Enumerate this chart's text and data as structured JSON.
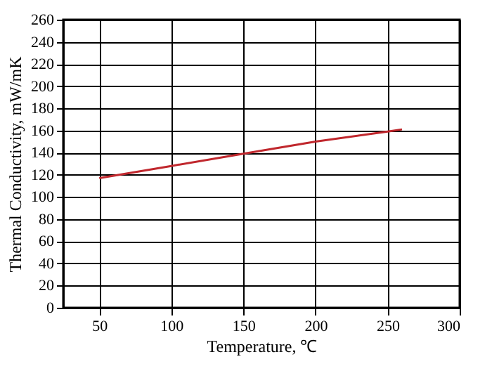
{
  "chart_data": {
    "type": "line",
    "xlabel": "Temperature, ℃",
    "ylabel": "Thermal Conductivity, mW/mK",
    "x": [
      50,
      100,
      150,
      200,
      250,
      260
    ],
    "series": [
      {
        "color": "#c0272d",
        "values": [
          117,
          128,
          139,
          150,
          159,
          161
        ]
      }
    ],
    "xlim": [
      25,
      300
    ],
    "xticks": [
      50,
      100,
      150,
      200,
      250,
      300
    ],
    "ylim": [
      0,
      260
    ],
    "yticks": [
      0,
      20,
      40,
      60,
      80,
      100,
      120,
      140,
      160,
      180,
      200,
      220,
      240,
      260
    ],
    "grid": true,
    "marker": "none",
    "line_style": "solid"
  }
}
